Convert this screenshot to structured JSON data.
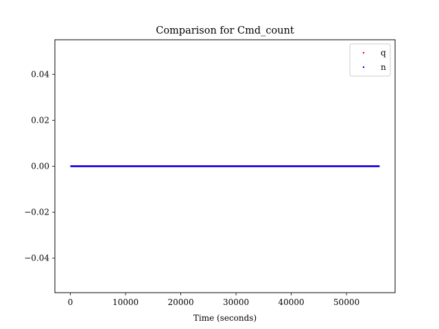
{
  "chart_data": {
    "type": "scatter",
    "title": "Comparison for Cmd_count",
    "xlabel": "Time (seconds)",
    "ylabel": "",
    "xlim": [
      -2800,
      58800
    ],
    "ylim": [
      -0.055,
      0.055
    ],
    "xticks": [
      0,
      10000,
      20000,
      30000,
      40000,
      50000
    ],
    "xtick_labels": [
      "0",
      "10000",
      "20000",
      "30000",
      "40000",
      "50000"
    ],
    "yticks": [
      0.04,
      0.02,
      0.0,
      -0.02,
      -0.04
    ],
    "ytick_labels": [
      "0.04",
      "0.02",
      "0.00",
      "−0.02",
      "−0.04"
    ],
    "grid": false,
    "legend_position": "top-right",
    "series": [
      {
        "name": "q",
        "color": "#ff0000",
        "x_range": [
          0,
          56000
        ],
        "y": 0.0
      },
      {
        "name": "n",
        "color": "#0000ff",
        "x_range": [
          0,
          56000
        ],
        "y": 0.0
      }
    ]
  }
}
